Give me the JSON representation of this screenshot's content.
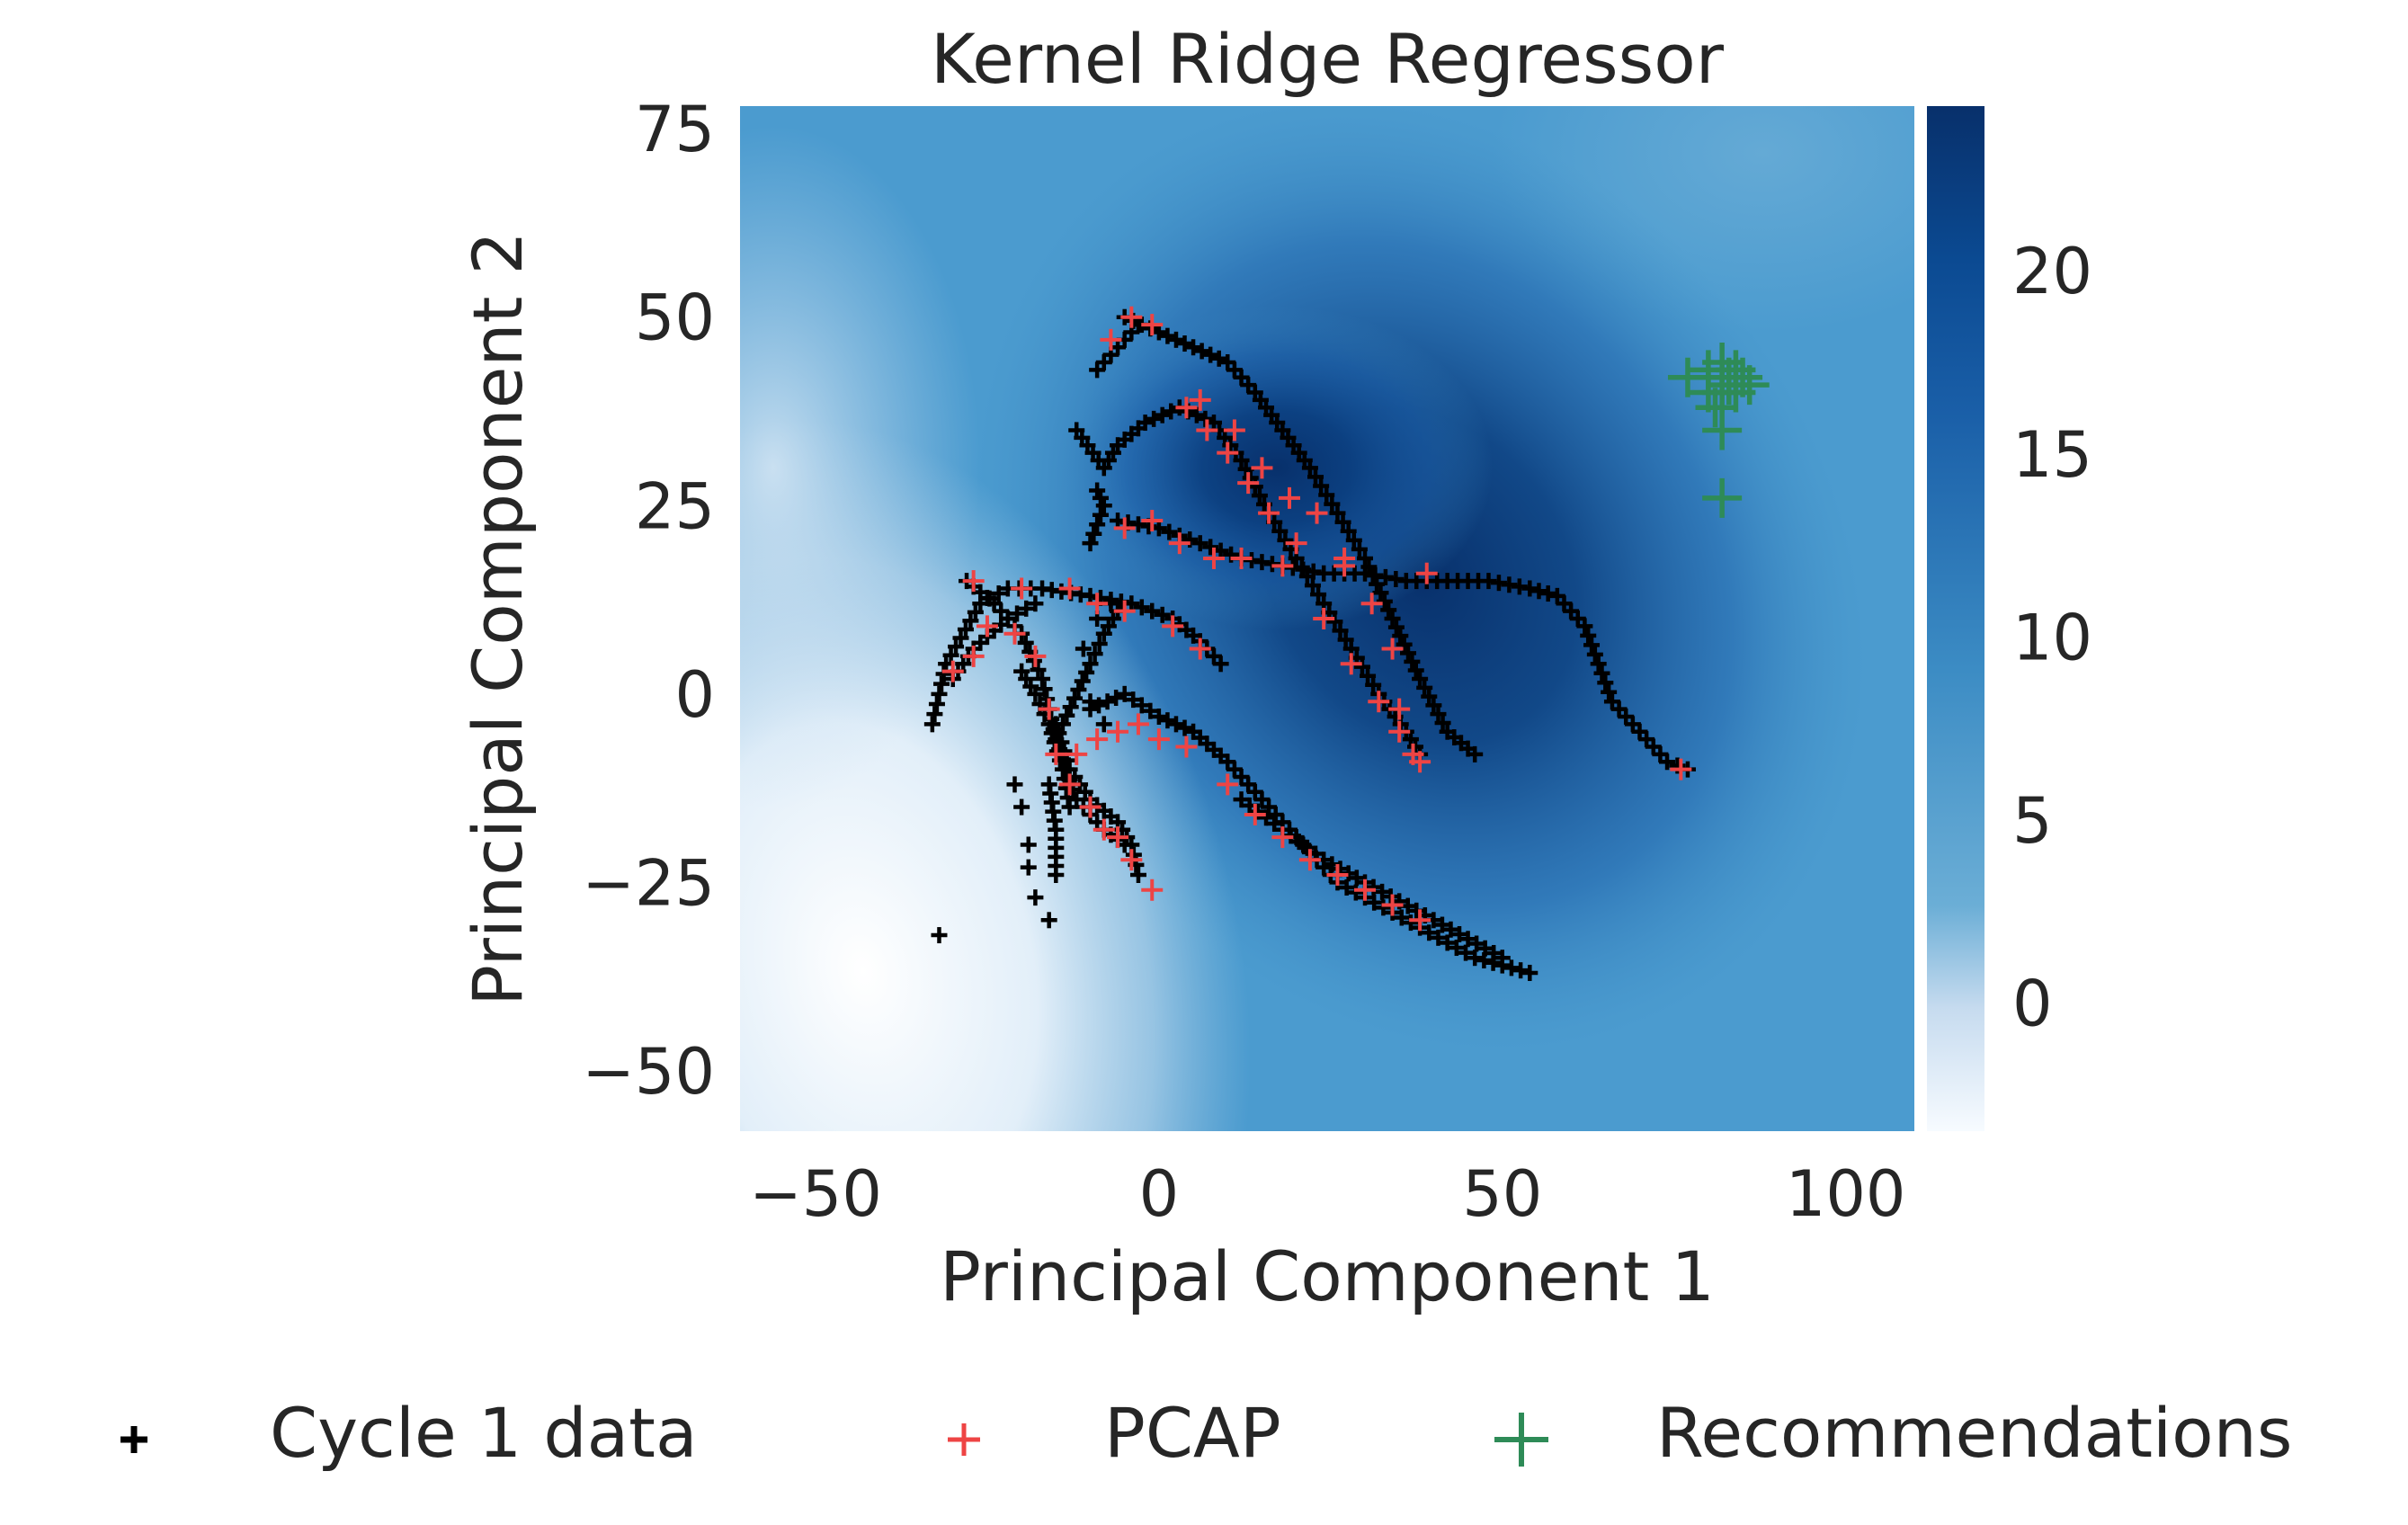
{
  "chart_data": {
    "type": "scatter",
    "title": "Kernel Ridge Regressor",
    "xlabel": "Principal Component 1",
    "ylabel": "Principal Component 2",
    "xlim": [
      -61,
      110
    ],
    "ylim": [
      -58,
      78
    ],
    "xticks": [
      -50,
      0,
      50,
      100
    ],
    "yticks": [
      -50,
      -25,
      0,
      25,
      50,
      75
    ],
    "xtick_labels": [
      "−50",
      "0",
      "50",
      "100"
    ],
    "ytick_labels": [
      "−50",
      "−25",
      "0",
      "25",
      "50",
      "75"
    ],
    "grid": false,
    "legend_position": "bottom",
    "colorbar": {
      "colormap": "Blues",
      "range": [
        -3.5,
        24.5
      ],
      "ticks": [
        0,
        5,
        10,
        15,
        20
      ],
      "tick_labels": [
        "0",
        "5",
        "10",
        "15",
        "20"
      ]
    },
    "series": [
      {
        "name": "Cycle 1 data",
        "marker": "+",
        "color": "#000000",
        "paths": [
          [
            [
              -33,
              -4
            ],
            [
              -31,
              4
            ],
            [
              -26,
              12
            ],
            [
              -22,
              14
            ],
            [
              -17,
              14
            ],
            [
              -10,
              13
            ],
            [
              -4,
              12
            ],
            [
              2,
              10
            ],
            [
              6,
              7
            ],
            [
              9,
              4
            ]
          ],
          [
            [
              -30,
              2
            ],
            [
              -27,
              6
            ],
            [
              -22,
              10
            ],
            [
              -18,
              12
            ]
          ],
          [
            [
              -28,
              15
            ],
            [
              -24,
              12
            ],
            [
              -20,
              8
            ],
            [
              -17,
              2
            ],
            [
              -15,
              -6
            ],
            [
              -12,
              -14
            ],
            [
              -8,
              -18
            ],
            [
              -5,
              -20
            ]
          ],
          [
            [
              -15,
              -4
            ],
            [
              -13,
              -10
            ],
            [
              -10,
              -14
            ],
            [
              -6,
              -17
            ],
            [
              -4,
              -20
            ],
            [
              -3,
              -24
            ]
          ],
          [
            [
              -20,
              3
            ],
            [
              -18,
              0
            ],
            [
              -16,
              -4
            ],
            [
              -14,
              -10
            ],
            [
              -13,
              -15
            ]
          ],
          [
            [
              -16,
              -12
            ],
            [
              -15,
              -18
            ],
            [
              -15,
              -24
            ]
          ],
          [
            [
              -10,
              -2
            ],
            [
              -5,
              0
            ],
            [
              0,
              -3
            ],
            [
              5,
              -5
            ],
            [
              10,
              -9
            ],
            [
              14,
              -13
            ],
            [
              18,
              -17
            ],
            [
              22,
              -21
            ],
            [
              26,
              -25
            ],
            [
              30,
              -27
            ],
            [
              34,
              -29
            ],
            [
              38,
              -31
            ],
            [
              42,
              -33
            ],
            [
              46,
              -35
            ],
            [
              50,
              -36
            ],
            [
              54,
              -37
            ]
          ],
          [
            [
              12,
              -14
            ],
            [
              18,
              -18
            ],
            [
              24,
              -22
            ],
            [
              30,
              -25
            ],
            [
              40,
              -30
            ],
            [
              50,
              -35
            ]
          ],
          [
            [
              -5,
              50
            ],
            [
              0,
              48
            ],
            [
              5,
              46
            ],
            [
              10,
              44
            ],
            [
              14,
              40
            ],
            [
              18,
              35
            ],
            [
              22,
              30
            ],
            [
              26,
              24
            ],
            [
              30,
              18
            ],
            [
              34,
              10
            ],
            [
              38,
              2
            ],
            [
              42,
              -5
            ],
            [
              46,
              -8
            ]
          ],
          [
            [
              -9,
              43
            ],
            [
              -6,
              46
            ],
            [
              -3,
              49
            ]
          ],
          [
            [
              -12,
              35
            ],
            [
              -8,
              30
            ],
            [
              -6,
              33
            ],
            [
              -2,
              36
            ],
            [
              3,
              38
            ],
            [
              8,
              36
            ],
            [
              12,
              31
            ],
            [
              16,
              24
            ],
            [
              20,
              18
            ],
            [
              24,
              12
            ],
            [
              28,
              6
            ],
            [
              32,
              0
            ],
            [
              36,
              -5
            ],
            [
              38,
              -8
            ]
          ],
          [
            [
              -10,
              20
            ],
            [
              -8,
              25
            ],
            [
              -9,
              27
            ]
          ],
          [
            [
              -6,
              23
            ],
            [
              0,
              22
            ],
            [
              6,
              20
            ],
            [
              12,
              18
            ],
            [
              18,
              17
            ],
            [
              24,
              16
            ],
            [
              30,
              16
            ],
            [
              36,
              15
            ],
            [
              42,
              15
            ],
            [
              48,
              15
            ],
            [
              54,
              14
            ],
            [
              58,
              13
            ],
            [
              62,
              9
            ],
            [
              64,
              4
            ],
            [
              66,
              -1
            ],
            [
              70,
              -5
            ],
            [
              74,
              -9
            ],
            [
              77,
              -10
            ]
          ],
          [
            [
              -14,
              -4
            ],
            [
              -10,
              4
            ],
            [
              -8,
              8
            ],
            [
              -6,
              11
            ]
          ]
        ],
        "points": [
          [
            -32,
            -32
          ],
          [
            -16,
            -30
          ],
          [
            -19,
            -23
          ],
          [
            -18,
            -27
          ],
          [
            -19,
            -20
          ],
          [
            -20,
            -15
          ],
          [
            -21,
            -12
          ],
          [
            -10,
            -1
          ],
          [
            -8,
            -4
          ],
          [
            -11,
            6
          ],
          [
            -9,
            10
          ],
          [
            -7,
            12
          ]
        ]
      },
      {
        "name": "PCAP",
        "marker": "+",
        "color": "#ee4444",
        "points": [
          [
            -4,
            50
          ],
          [
            -1,
            49
          ],
          [
            -7,
            47
          ],
          [
            -27,
            15
          ],
          [
            -20,
            14
          ],
          [
            -13,
            14
          ],
          [
            -9,
            12
          ],
          [
            -5,
            11
          ],
          [
            2,
            9
          ],
          [
            6,
            6
          ],
          [
            -30,
            3
          ],
          [
            -27,
            5
          ],
          [
            -25,
            9
          ],
          [
            -21,
            8
          ],
          [
            -18,
            5
          ],
          [
            -16,
            -2
          ],
          [
            -15,
            -8
          ],
          [
            -13,
            -12
          ],
          [
            -10,
            -15
          ],
          [
            -8,
            -18
          ],
          [
            -6,
            -19
          ],
          [
            -4,
            -22
          ],
          [
            -1,
            -26
          ],
          [
            -12,
            -8
          ],
          [
            -9,
            -6
          ],
          [
            -6,
            -5
          ],
          [
            -3,
            -4
          ],
          [
            0,
            -6
          ],
          [
            4,
            -7
          ],
          [
            10,
            -12
          ],
          [
            14,
            -16
          ],
          [
            18,
            -19
          ],
          [
            22,
            -22
          ],
          [
            26,
            -24
          ],
          [
            30,
            -26
          ],
          [
            34,
            -28
          ],
          [
            38,
            -30
          ],
          [
            -5,
            22
          ],
          [
            -1,
            23
          ],
          [
            3,
            20
          ],
          [
            8,
            18
          ],
          [
            12,
            18
          ],
          [
            18,
            17
          ],
          [
            27,
            17
          ],
          [
            39,
            16
          ],
          [
            4,
            38
          ],
          [
            7,
            35
          ],
          [
            10,
            32
          ],
          [
            13,
            28
          ],
          [
            16,
            24
          ],
          [
            20,
            20
          ],
          [
            24,
            10
          ],
          [
            28,
            4
          ],
          [
            32,
            -1
          ],
          [
            35,
            -5
          ],
          [
            38,
            -9
          ],
          [
            6,
            39
          ],
          [
            11,
            35
          ],
          [
            15,
            30
          ],
          [
            19,
            26
          ],
          [
            23,
            24
          ],
          [
            27,
            18
          ],
          [
            31,
            12
          ],
          [
            34,
            6
          ],
          [
            35,
            -2
          ],
          [
            37,
            -8
          ],
          [
            76,
            -10
          ]
        ]
      },
      {
        "name": "Recommendations",
        "marker": "+",
        "color": "#2e8b57",
        "points": [
          [
            77,
            42
          ],
          [
            80,
            43
          ],
          [
            82,
            44
          ],
          [
            84,
            43
          ],
          [
            83,
            41
          ],
          [
            82,
            40
          ],
          [
            85,
            42
          ],
          [
            86,
            41
          ],
          [
            81,
            38
          ],
          [
            82,
            35
          ],
          [
            82,
            26
          ],
          [
            83,
            42
          ],
          [
            84,
            40
          ],
          [
            80,
            40
          ]
        ]
      }
    ]
  }
}
